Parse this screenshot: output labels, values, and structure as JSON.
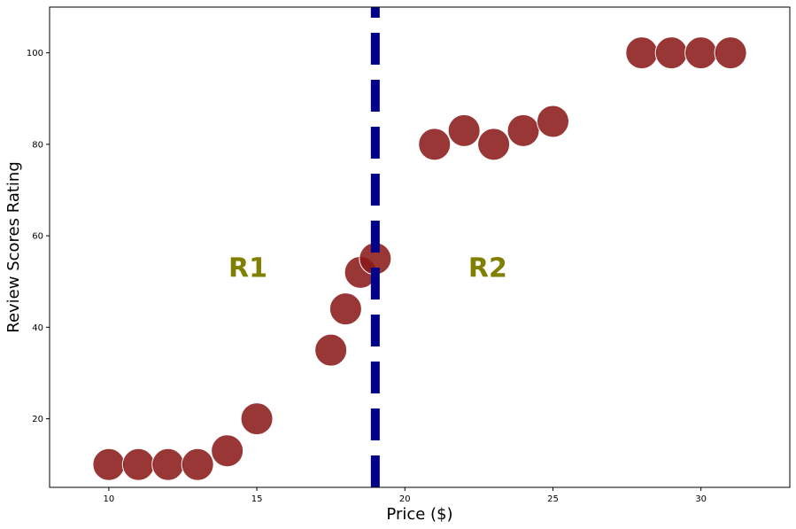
{
  "chart_data": {
    "type": "scatter",
    "title": "",
    "xlabel": "Price ($)",
    "ylabel": "Review Scores Rating",
    "xlim": [
      8,
      33
    ],
    "ylim": [
      5,
      110
    ],
    "xticks": [
      10,
      15,
      20,
      25,
      30
    ],
    "yticks": [
      20,
      40,
      60,
      80,
      100
    ],
    "grid": false,
    "points": [
      {
        "x": 10,
        "y": 10
      },
      {
        "x": 11,
        "y": 10
      },
      {
        "x": 12,
        "y": 10
      },
      {
        "x": 13,
        "y": 10
      },
      {
        "x": 14,
        "y": 13
      },
      {
        "x": 15,
        "y": 20
      },
      {
        "x": 17.5,
        "y": 35
      },
      {
        "x": 18,
        "y": 44
      },
      {
        "x": 18.5,
        "y": 52
      },
      {
        "x": 19,
        "y": 55
      },
      {
        "x": 21,
        "y": 80
      },
      {
        "x": 22,
        "y": 83
      },
      {
        "x": 23,
        "y": 80
      },
      {
        "x": 24,
        "y": 83
      },
      {
        "x": 25,
        "y": 85
      },
      {
        "x": 28,
        "y": 100
      },
      {
        "x": 29,
        "y": 100
      },
      {
        "x": 30,
        "y": 100
      },
      {
        "x": 31,
        "y": 100
      }
    ],
    "split": {
      "x": 19
    },
    "regions": [
      {
        "label": "R1",
        "x": 14.7,
        "y": 51
      },
      {
        "label": "R2",
        "x": 22.8,
        "y": 51
      }
    ],
    "colors": {
      "point": "#8b1a1a",
      "point_edge": "#ffffff",
      "split_line": "#00008b",
      "region_label": "#808000"
    }
  }
}
